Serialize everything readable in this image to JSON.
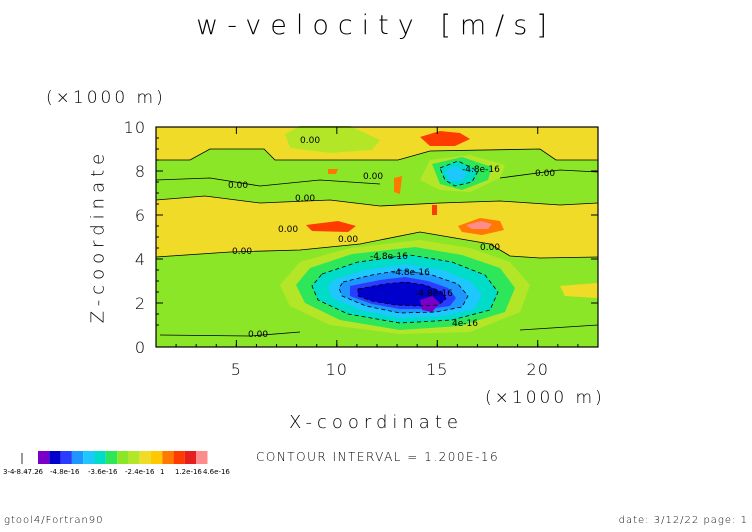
{
  "chart_data": {
    "type": "heatmap",
    "title": "w-velocity [m/s]",
    "xlabel": "X-coordinate",
    "ylabel": "Z-coordinate",
    "x_unit": "(×1000 m)",
    "y_unit": "(×1000 m)",
    "xlim": [
      1,
      23
    ],
    "ylim": [
      0,
      10
    ],
    "x_ticks": [
      "5",
      "10",
      "15",
      "20"
    ],
    "y_ticks": [
      "0",
      "2",
      "4",
      "6",
      "8",
      "10"
    ],
    "x_tick_values": [
      5,
      10,
      15,
      20
    ],
    "y_tick_values": [
      0,
      2,
      4,
      6,
      8,
      10
    ],
    "contour_interval": "CONTOUR INTERVAL = 1.200E-16",
    "contour_labels": [
      "0.00",
      "0.00",
      "0.00",
      "0.00",
      "0.00",
      "0.00",
      "0.00",
      "0.00",
      "0.00",
      "0.00",
      "-4.8e-16",
      "-4.8e-16",
      "-4.8e-16",
      "-4.8e-16",
      "4e-16"
    ],
    "colorbar": {
      "colors": [
        "#7a00c8",
        "#0000cd",
        "#2a3cff",
        "#1e96ff",
        "#1ec8ff",
        "#00dcc8",
        "#2ee65a",
        "#8ce628",
        "#b4e628",
        "#f0dc28",
        "#ffc800",
        "#ff7800",
        "#ff3c00",
        "#e61e1e",
        "#ff8c8c"
      ],
      "labels": [
        "3-4",
        "-8.4",
        "-7.2",
        "-6",
        "-4.8e-16",
        "-3.6e-16",
        "-2.4e-16",
        "1",
        "1.2e-16",
        "4.6e-16"
      ]
    }
  },
  "footer": {
    "left": "gtool4/Fortran90",
    "right": "date: 3/12/22 page: 1"
  }
}
